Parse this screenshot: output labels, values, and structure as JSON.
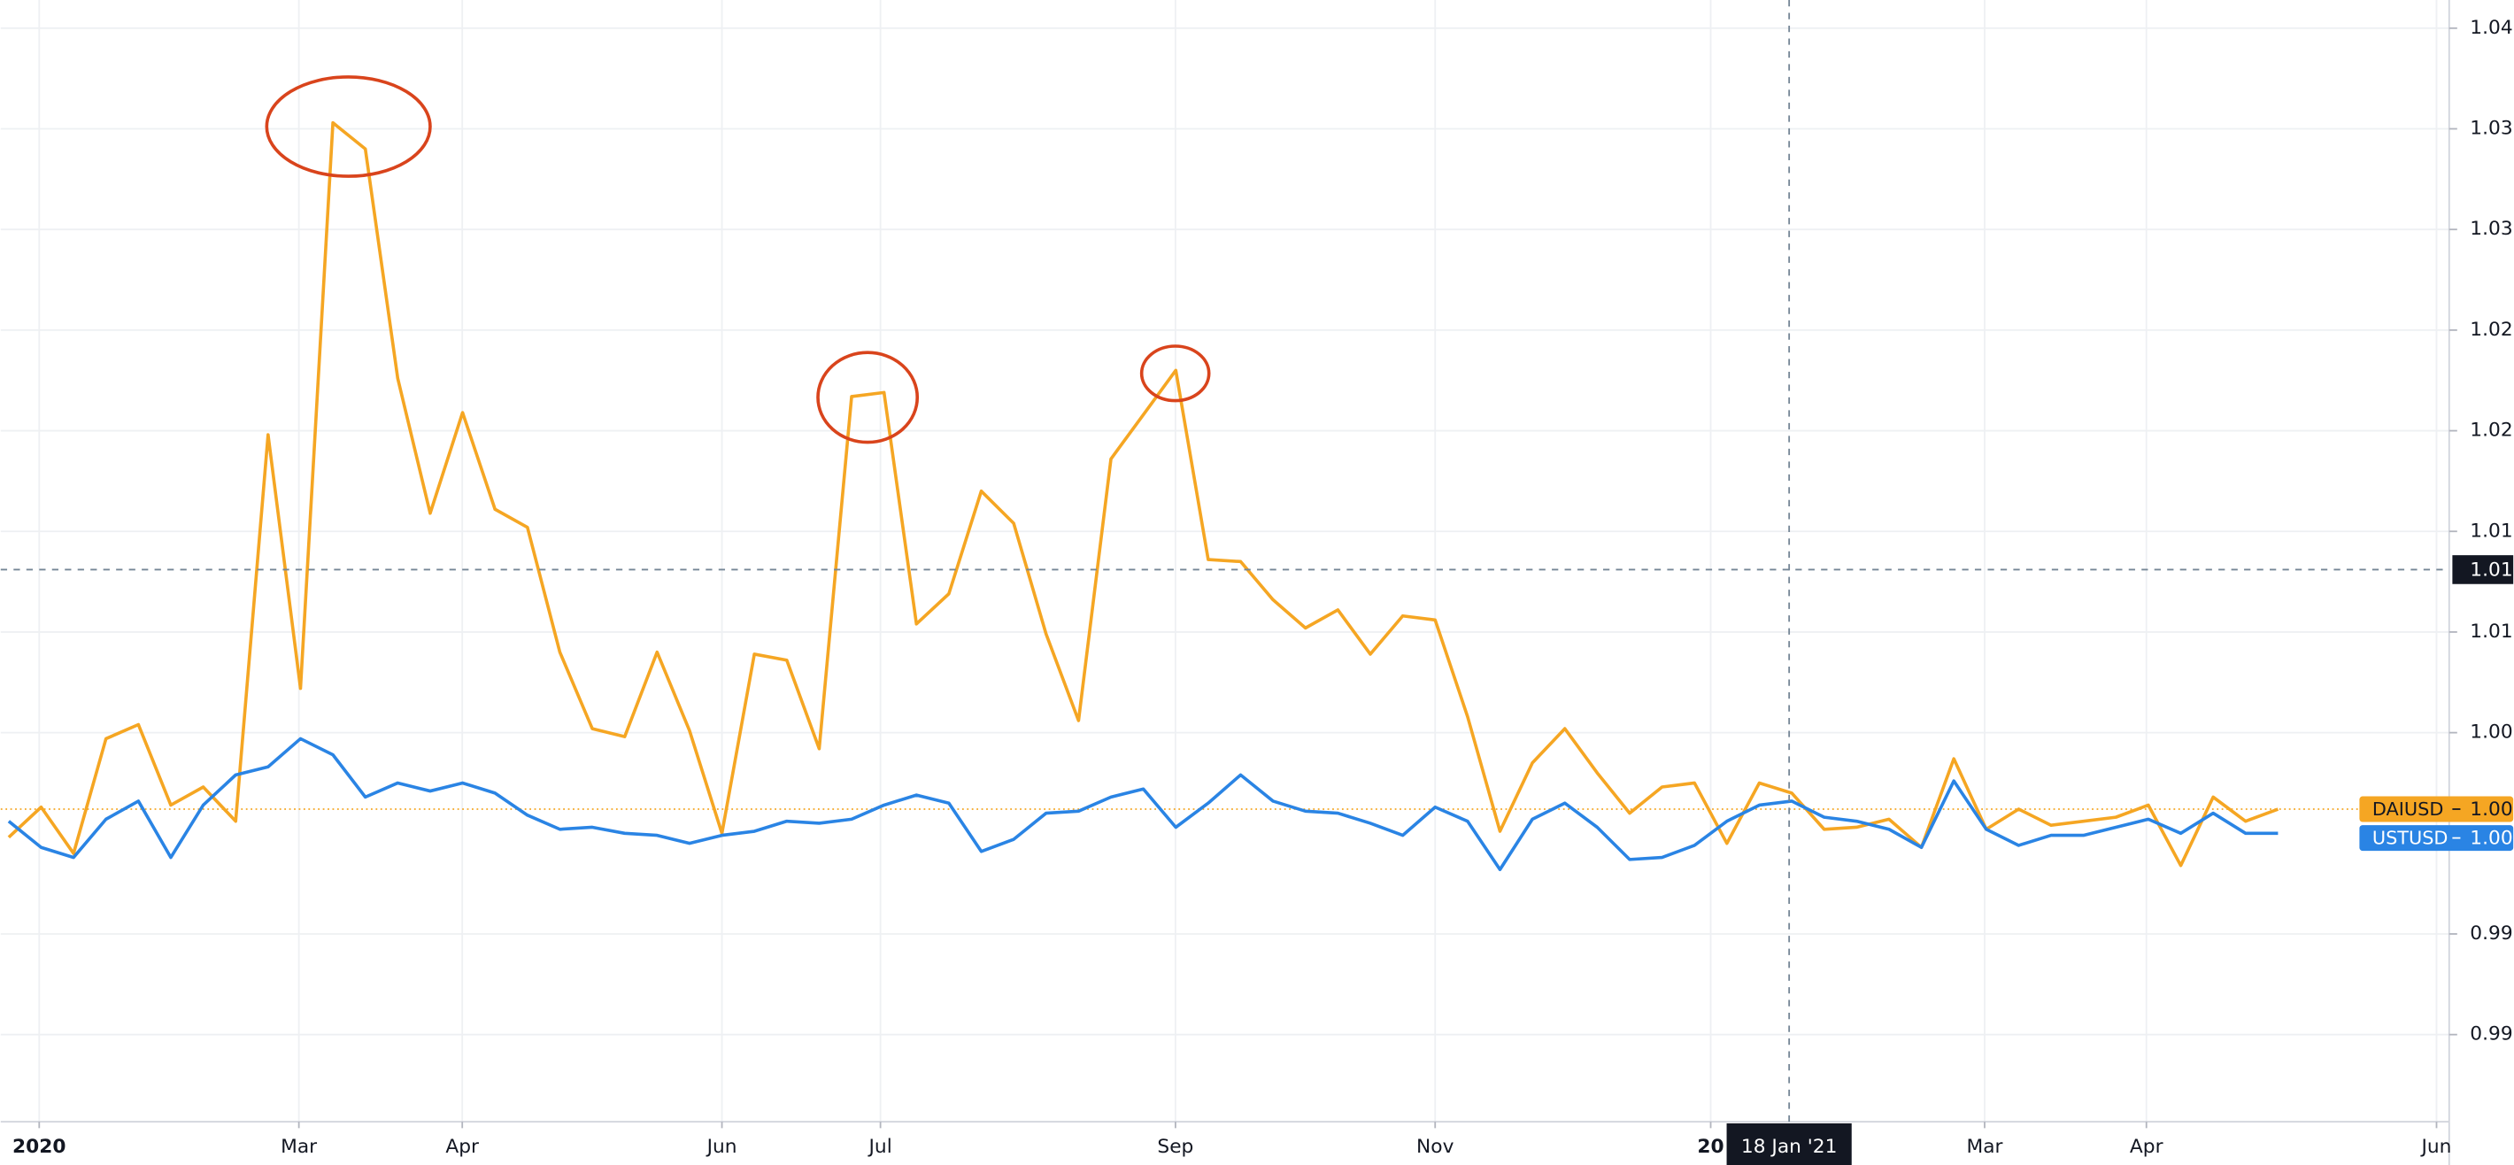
{
  "chart_data": {
    "type": "line",
    "xlim": [
      -0.247,
      75.28
    ],
    "xticks": [
      {
        "value": 0.94,
        "label": "2020"
      },
      {
        "value": 8.95,
        "label": "Mar"
      },
      {
        "value": 13.99,
        "label": "Apr"
      },
      {
        "value": 22.0,
        "label": "Jun"
      },
      {
        "value": 26.89,
        "label": "Jul"
      },
      {
        "value": 35.99,
        "label": "Sep"
      },
      {
        "value": 44.0,
        "label": "Nov"
      },
      {
        "value": 52.5,
        "label": "20"
      },
      {
        "value": 60.95,
        "label": "Mar"
      },
      {
        "value": 65.94,
        "label": "Apr"
      },
      {
        "value": 74.89,
        "label": "Jun"
      }
    ],
    "ylim": [
      0.98567,
      1.0414
    ],
    "yticks": [
      {
        "value": 1.04,
        "label": "1.04"
      },
      {
        "value": 1.035,
        "label": "1.03"
      },
      {
        "value": 1.03,
        "label": "1.03"
      },
      {
        "value": 1.025,
        "label": "1.02"
      },
      {
        "value": 1.02,
        "label": "1.02"
      },
      {
        "value": 1.015,
        "label": "1.01"
      },
      {
        "value": 1.01,
        "label": "1.01"
      },
      {
        "value": 1.005,
        "label": "1.00"
      },
      {
        "value": 0.995,
        "label": "0.99"
      },
      {
        "value": 0.99,
        "label": "0.99"
      }
    ],
    "grid": true,
    "crosshair": {
      "x": 54.92,
      "x_label": "18 Jan '21",
      "y": 1.0131,
      "y_label": "1.01"
    },
    "series": [
      {
        "name": "DAIUSD",
        "color": "#f5a623",
        "value_label": "1.00",
        "values": [
          0.9998,
          1.0013,
          0.999,
          1.0047,
          1.0054,
          1.0014,
          1.0023,
          1.0006,
          1.0198,
          1.0072,
          1.0353,
          1.034,
          1.0226,
          1.0159,
          1.0209,
          1.0161,
          1.0152,
          1.009,
          1.0052,
          1.0048,
          1.009,
          1.0051,
          1.0,
          1.0089,
          1.0086,
          1.0042,
          1.0217,
          1.0219,
          1.0104,
          1.0119,
          1.017,
          1.0154,
          1.0099,
          1.0056,
          1.0186,
          1.0208,
          1.023,
          1.0136,
          1.0135,
          1.0116,
          1.0102,
          1.0111,
          1.0089,
          1.0108,
          1.0106,
          1.0058,
          1.0001,
          1.0035,
          1.0052,
          1.003,
          1.001,
          1.0023,
          1.0025,
          0.9995,
          1.0025,
          1.002,
          1.0002,
          1.0003,
          1.0007,
          0.9993,
          1.0037,
          1.0002,
          1.0012,
          1.0004,
          1.0006,
          1.0008,
          1.0014,
          0.9984,
          1.0018,
          1.0006,
          1.0012
        ]
      },
      {
        "name": "USTUSD",
        "color": "#2a84e4",
        "value_label": "1.00",
        "values": [
          1.0006,
          0.9993,
          0.9988,
          1.0007,
          1.0016,
          0.9988,
          1.0014,
          1.0029,
          1.0033,
          1.0047,
          1.0039,
          1.0018,
          1.0025,
          1.0021,
          1.0025,
          1.002,
          1.0009,
          1.0002,
          1.0003,
          1.0,
          0.9999,
          0.9995,
          0.9999,
          1.0001,
          1.0006,
          1.0005,
          1.0007,
          1.0014,
          1.0019,
          1.0015,
          0.9991,
          0.9997,
          1.001,
          1.0011,
          1.0018,
          1.0022,
          1.0003,
          1.0015,
          1.0029,
          1.0016,
          1.0011,
          1.001,
          1.0005,
          0.9999,
          1.0013,
          1.0006,
          0.9982,
          1.0007,
          1.0015,
          1.0003,
          0.9987,
          0.9988,
          0.9994,
          1.0006,
          1.0014,
          1.0016,
          1.0008,
          1.0006,
          1.0002,
          0.9993,
          1.0026,
          1.0002,
          0.9994,
          0.9999,
          0.9999,
          1.0003,
          1.0007,
          1.0,
          1.001,
          1.0,
          1.0
        ]
      }
    ]
  }
}
